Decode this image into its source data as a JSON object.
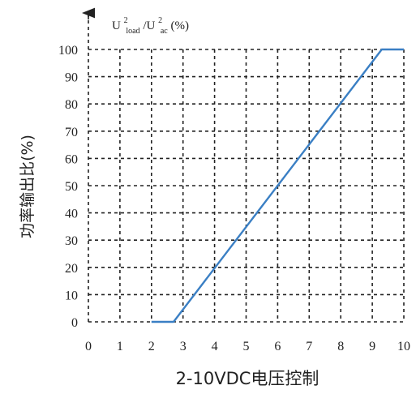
{
  "chart_data": {
    "type": "line",
    "xlabel": "2-10VDC电压控制",
    "ylabel": "功率输出比(%)",
    "ytitle": {
      "part1": "U",
      "sup1": "2",
      "sub1": "load",
      "slash": "/U",
      "sup2": "2",
      "sub2": "ac",
      "unit": "(%)"
    },
    "xlim": [
      0,
      10
    ],
    "ylim": [
      0,
      100
    ],
    "xticks": [
      0,
      1,
      2,
      3,
      4,
      5,
      6,
      7,
      8,
      9,
      10
    ],
    "yticks": [
      0,
      10,
      20,
      30,
      40,
      50,
      60,
      70,
      80,
      90,
      100
    ],
    "grid": true,
    "grid_style": "dashed",
    "series": [
      {
        "x": [
          2.0,
          2.7,
          9.3,
          10.0
        ],
        "y": [
          0,
          0,
          100,
          100
        ],
        "color": "#3a7fc4"
      }
    ]
  }
}
